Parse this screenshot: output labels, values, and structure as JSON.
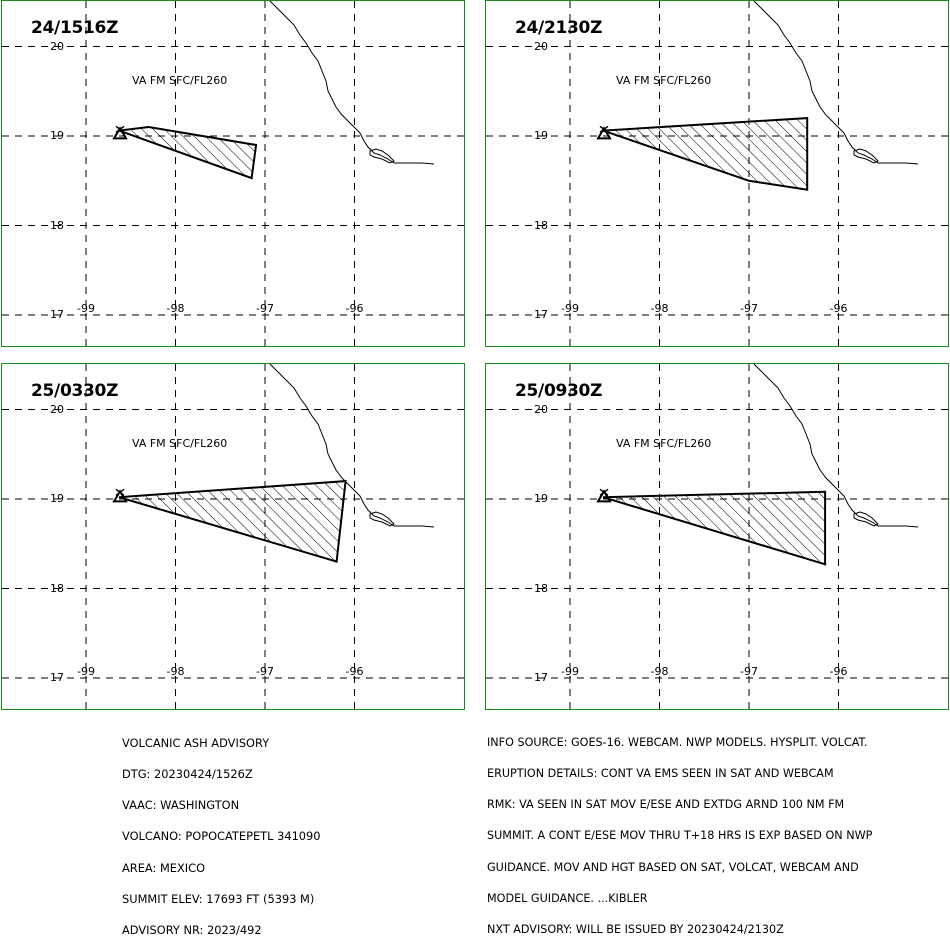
{
  "panels": [
    {
      "time": "24/1516Z",
      "label": "VA FM SFC/FL260",
      "polygon": [
        [
          -98.63,
          19.06
        ],
        [
          -98.3,
          19.1
        ],
        [
          -97.1,
          18.9
        ],
        [
          -97.15,
          18.53
        ]
      ]
    },
    {
      "time": "24/2130Z",
      "label": "VA FM SFC/FL260",
      "polygon": [
        [
          -98.63,
          19.06
        ],
        [
          -96.35,
          19.2
        ],
        [
          -96.35,
          18.4
        ],
        [
          -97.0,
          18.5
        ]
      ]
    },
    {
      "time": "25/0330Z",
      "label": "VA FM SFC/FL260",
      "polygon": [
        [
          -98.63,
          19.02
        ],
        [
          -96.1,
          19.2
        ],
        [
          -96.2,
          18.3
        ]
      ]
    },
    {
      "time": "25/0930Z",
      "label": "VA FM SFC/FL260",
      "polygon": [
        [
          -98.63,
          19.02
        ],
        [
          -96.15,
          19.08
        ],
        [
          -96.15,
          18.27
        ]
      ]
    }
  ],
  "axes": {
    "lat_labels": [
      "20",
      "19",
      "18",
      "17"
    ],
    "lon_labels": [
      "-99",
      "-98",
      "-97",
      "-96"
    ]
  },
  "volcano_marker": {
    "lon": -98.62,
    "lat": 19.03
  },
  "advisory_left": [
    "VOLCANIC ASH ADVISORY",
    "DTG: 20230424/1526Z",
    "VAAC: WASHINGTON",
    "VOLCANO: POPOCATEPETL 341090",
    "AREA: MEXICO",
    "SUMMIT ELEV: 17693 FT (5393 M)",
    "ADVISORY NR: 2023/492"
  ],
  "advisory_right": [
    "INFO SOURCE: GOES-16. WEBCAM. NWP MODELS. HYSPLIT. VOLCAT.",
    "ERUPTION DETAILS: CONT VA EMS SEEN IN SAT AND WEBCAM",
    "RMK: VA SEEN IN SAT MOV E/ESE AND EXTDG ARND 100 NM FM",
    "SUMMIT. A CONT E/ESE MOV THRU T+18 HRS IS EXP BASED ON NWP",
    "GUIDANCE. MOV AND HGT BASED ON SAT, VOLCAT, WEBCAM AND",
    "MODEL GUIDANCE. ...KIBLER",
    "NXT ADVISORY: WILL BE ISSUED BY 20230424/2130Z"
  ],
  "colors": {
    "frame": "#1a8a1a",
    "lines": "#000000",
    "background": "#ffffff"
  }
}
